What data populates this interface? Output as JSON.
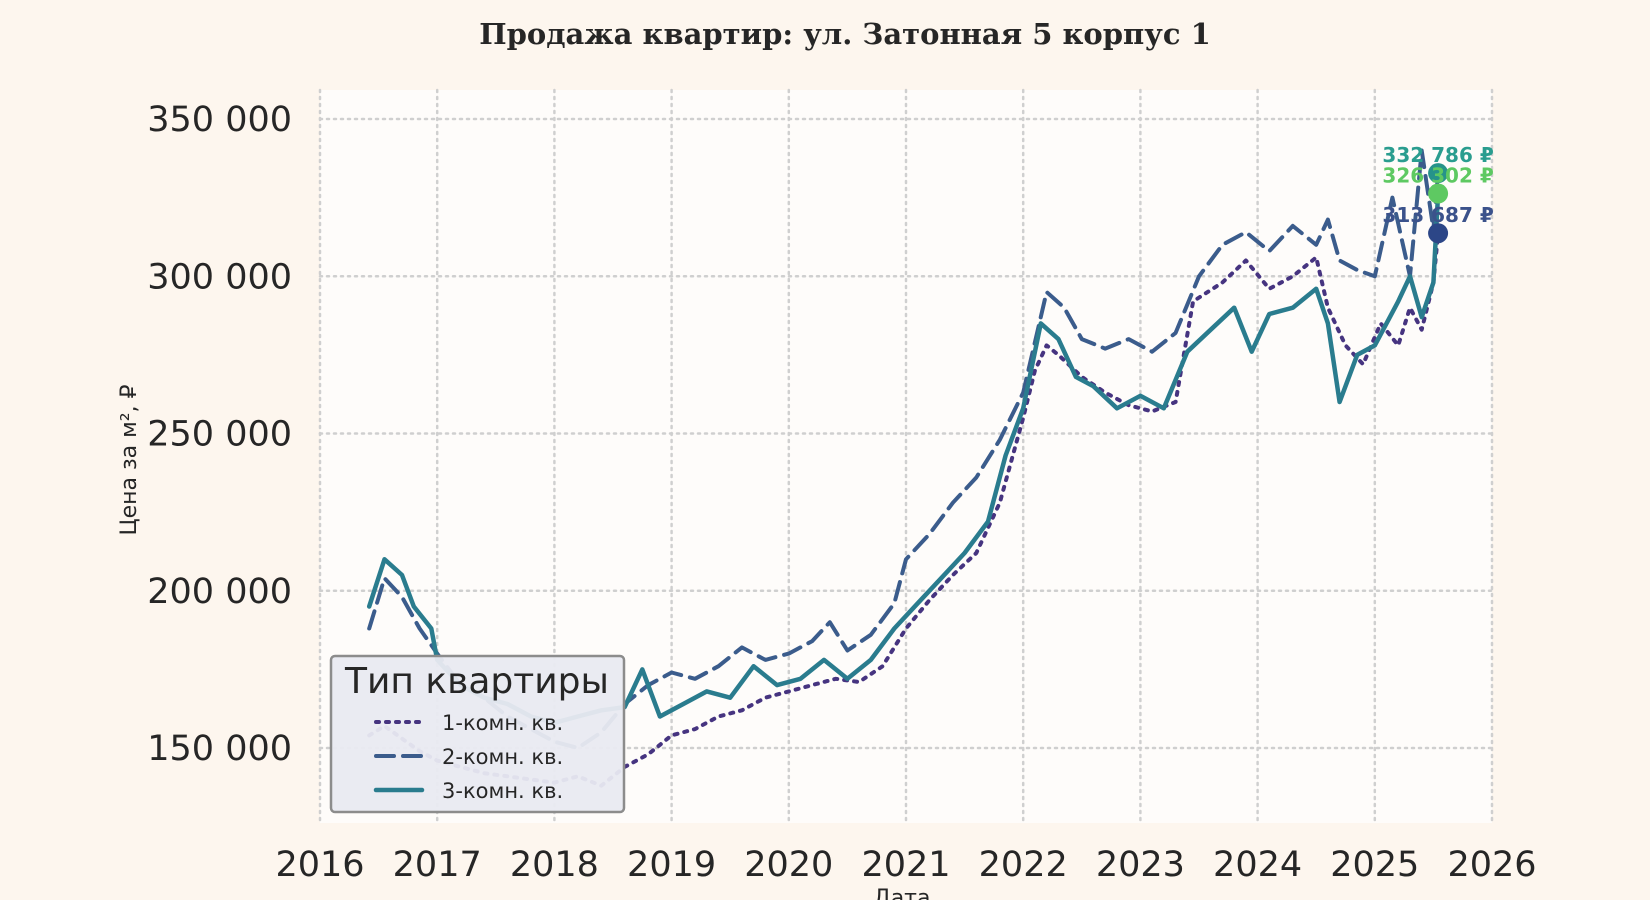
{
  "chart_data": {
    "type": "line",
    "title": "Продажа квартир: ул. Затонная 5 корпус 1",
    "xlabel": "Дата",
    "ylabel": "Цена за м², ₽",
    "x_range": [
      2016.0,
      2026.0
    ],
    "ylim": [
      125000,
      358000
    ],
    "x_ticks": [
      "2016",
      "2017",
      "2018",
      "2019",
      "2020",
      "2021",
      "2022",
      "2023",
      "2024",
      "2025",
      "2026"
    ],
    "y_ticks": [
      {
        "value": 150000,
        "label": "150 000"
      },
      {
        "value": 200000,
        "label": "200 000"
      },
      {
        "value": 250000,
        "label": "250 000"
      },
      {
        "value": 300000,
        "label": "300 000"
      },
      {
        "value": 350000,
        "label": "350 000"
      }
    ],
    "grid": true,
    "legend": {
      "title": "Тип квартиры",
      "placement": "lower-left",
      "entries": [
        "1-комн. кв.",
        "2-комн. кв.",
        "3-комн. кв."
      ]
    },
    "series": [
      {
        "name": "1-комн. кв.",
        "style": "dotted",
        "color": "#463480",
        "points": [
          [
            2016.42,
            154000
          ],
          [
            2016.55,
            157000
          ],
          [
            2016.7,
            153000
          ],
          [
            2016.85,
            149000
          ],
          [
            2017.0,
            146000
          ],
          [
            2017.2,
            144000
          ],
          [
            2017.4,
            142000
          ],
          [
            2017.6,
            141000
          ],
          [
            2017.8,
            140000
          ],
          [
            2018.0,
            139000
          ],
          [
            2018.2,
            141000
          ],
          [
            2018.4,
            138000
          ],
          [
            2018.6,
            144000
          ],
          [
            2018.8,
            148000
          ],
          [
            2019.0,
            154000
          ],
          [
            2019.2,
            156000
          ],
          [
            2019.4,
            160000
          ],
          [
            2019.6,
            162000
          ],
          [
            2019.8,
            166000
          ],
          [
            2020.0,
            168000
          ],
          [
            2020.2,
            170000
          ],
          [
            2020.4,
            172000
          ],
          [
            2020.6,
            171000
          ],
          [
            2020.8,
            176000
          ],
          [
            2021.0,
            188000
          ],
          [
            2021.2,
            197000
          ],
          [
            2021.4,
            205000
          ],
          [
            2021.6,
            212000
          ],
          [
            2021.8,
            228000
          ],
          [
            2022.0,
            255000
          ],
          [
            2022.1,
            270000
          ],
          [
            2022.2,
            278000
          ],
          [
            2022.3,
            275000
          ],
          [
            2022.5,
            268000
          ],
          [
            2022.7,
            263000
          ],
          [
            2022.9,
            259000
          ],
          [
            2023.1,
            257000
          ],
          [
            2023.3,
            260000
          ],
          [
            2023.45,
            292000
          ],
          [
            2023.7,
            298000
          ],
          [
            2023.9,
            305000
          ],
          [
            2024.1,
            296000
          ],
          [
            2024.3,
            300000
          ],
          [
            2024.5,
            306000
          ],
          [
            2024.6,
            290000
          ],
          [
            2024.75,
            278000
          ],
          [
            2024.9,
            272000
          ],
          [
            2025.05,
            285000
          ],
          [
            2025.2,
            278000
          ],
          [
            2025.3,
            290000
          ],
          [
            2025.4,
            283000
          ],
          [
            2025.5,
            298000
          ],
          [
            2025.54,
            313687
          ]
        ]
      },
      {
        "name": "2-комн. кв.",
        "style": "dashed",
        "color": "#3b5c8c",
        "points": [
          [
            2016.42,
            188000
          ],
          [
            2016.55,
            204000
          ],
          [
            2016.7,
            198000
          ],
          [
            2016.85,
            188000
          ],
          [
            2017.0,
            180000
          ],
          [
            2017.2,
            170000
          ],
          [
            2017.4,
            166000
          ],
          [
            2017.6,
            160000
          ],
          [
            2017.8,
            156000
          ],
          [
            2018.0,
            152000
          ],
          [
            2018.2,
            150000
          ],
          [
            2018.4,
            155000
          ],
          [
            2018.6,
            164000
          ],
          [
            2018.8,
            170000
          ],
          [
            2019.0,
            174000
          ],
          [
            2019.2,
            172000
          ],
          [
            2019.4,
            176000
          ],
          [
            2019.6,
            182000
          ],
          [
            2019.8,
            178000
          ],
          [
            2020.0,
            180000
          ],
          [
            2020.2,
            184000
          ],
          [
            2020.35,
            190000
          ],
          [
            2020.5,
            181000
          ],
          [
            2020.7,
            186000
          ],
          [
            2020.9,
            196000
          ],
          [
            2021.0,
            210000
          ],
          [
            2021.2,
            218000
          ],
          [
            2021.4,
            228000
          ],
          [
            2021.6,
            236000
          ],
          [
            2021.8,
            248000
          ],
          [
            2022.0,
            263000
          ],
          [
            2022.2,
            295000
          ],
          [
            2022.35,
            290000
          ],
          [
            2022.5,
            280000
          ],
          [
            2022.7,
            277000
          ],
          [
            2022.9,
            280000
          ],
          [
            2023.1,
            276000
          ],
          [
            2023.3,
            282000
          ],
          [
            2023.5,
            300000
          ],
          [
            2023.7,
            310000
          ],
          [
            2023.9,
            314000
          ],
          [
            2024.1,
            308000
          ],
          [
            2024.3,
            316000
          ],
          [
            2024.5,
            310000
          ],
          [
            2024.6,
            318000
          ],
          [
            2024.7,
            305000
          ],
          [
            2024.85,
            302000
          ],
          [
            2025.0,
            300000
          ],
          [
            2025.15,
            325000
          ],
          [
            2025.3,
            300000
          ],
          [
            2025.4,
            340000
          ],
          [
            2025.5,
            315000
          ],
          [
            2025.54,
            332786
          ]
        ]
      },
      {
        "name": "3-комн. кв.",
        "style": "solid",
        "color": "#2a7c8e",
        "points": [
          [
            2016.42,
            195000
          ],
          [
            2016.55,
            210000
          ],
          [
            2016.7,
            205000
          ],
          [
            2016.8,
            195000
          ],
          [
            2016.95,
            188000
          ],
          [
            2017.0,
            178000
          ],
          [
            2017.2,
            170000
          ],
          [
            2017.4,
            166000
          ],
          [
            2017.6,
            164000
          ],
          [
            2017.8,
            160000
          ],
          [
            2018.0,
            158000
          ],
          [
            2018.2,
            160000
          ],
          [
            2018.4,
            162000
          ],
          [
            2018.6,
            163000
          ],
          [
            2018.75,
            175000
          ],
          [
            2018.9,
            160000
          ],
          [
            2019.1,
            164000
          ],
          [
            2019.3,
            168000
          ],
          [
            2019.5,
            166000
          ],
          [
            2019.7,
            176000
          ],
          [
            2019.9,
            170000
          ],
          [
            2020.1,
            172000
          ],
          [
            2020.3,
            178000
          ],
          [
            2020.5,
            172000
          ],
          [
            2020.7,
            178000
          ],
          [
            2020.9,
            188000
          ],
          [
            2021.1,
            196000
          ],
          [
            2021.3,
            204000
          ],
          [
            2021.5,
            212000
          ],
          [
            2021.7,
            222000
          ],
          [
            2021.85,
            243000
          ],
          [
            2022.0,
            258000
          ],
          [
            2022.15,
            285000
          ],
          [
            2022.3,
            280000
          ],
          [
            2022.45,
            268000
          ],
          [
            2022.6,
            265000
          ],
          [
            2022.8,
            258000
          ],
          [
            2023.0,
            262000
          ],
          [
            2023.2,
            258000
          ],
          [
            2023.4,
            276000
          ],
          [
            2023.6,
            283000
          ],
          [
            2023.8,
            290000
          ],
          [
            2023.95,
            276000
          ],
          [
            2024.1,
            288000
          ],
          [
            2024.3,
            290000
          ],
          [
            2024.5,
            296000
          ],
          [
            2024.6,
            285000
          ],
          [
            2024.7,
            260000
          ],
          [
            2024.85,
            275000
          ],
          [
            2025.0,
            278000
          ],
          [
            2025.2,
            292000
          ],
          [
            2025.3,
            300000
          ],
          [
            2025.4,
            287000
          ],
          [
            2025.5,
            298000
          ],
          [
            2025.54,
            326302
          ]
        ]
      }
    ],
    "annotations": [
      {
        "text": "332 786 ₽",
        "x": 2025.54,
        "y": 332786,
        "color": "#2a9d8f",
        "marker": "#26938a"
      },
      {
        "text": "326 302 ₽",
        "x": 2025.54,
        "y": 326302,
        "color": "#5ec962",
        "marker": "#5ec962"
      },
      {
        "text": "313 687 ₽",
        "x": 2025.54,
        "y": 313687,
        "color": "#3b528b",
        "marker": "#2c4687"
      }
    ]
  }
}
